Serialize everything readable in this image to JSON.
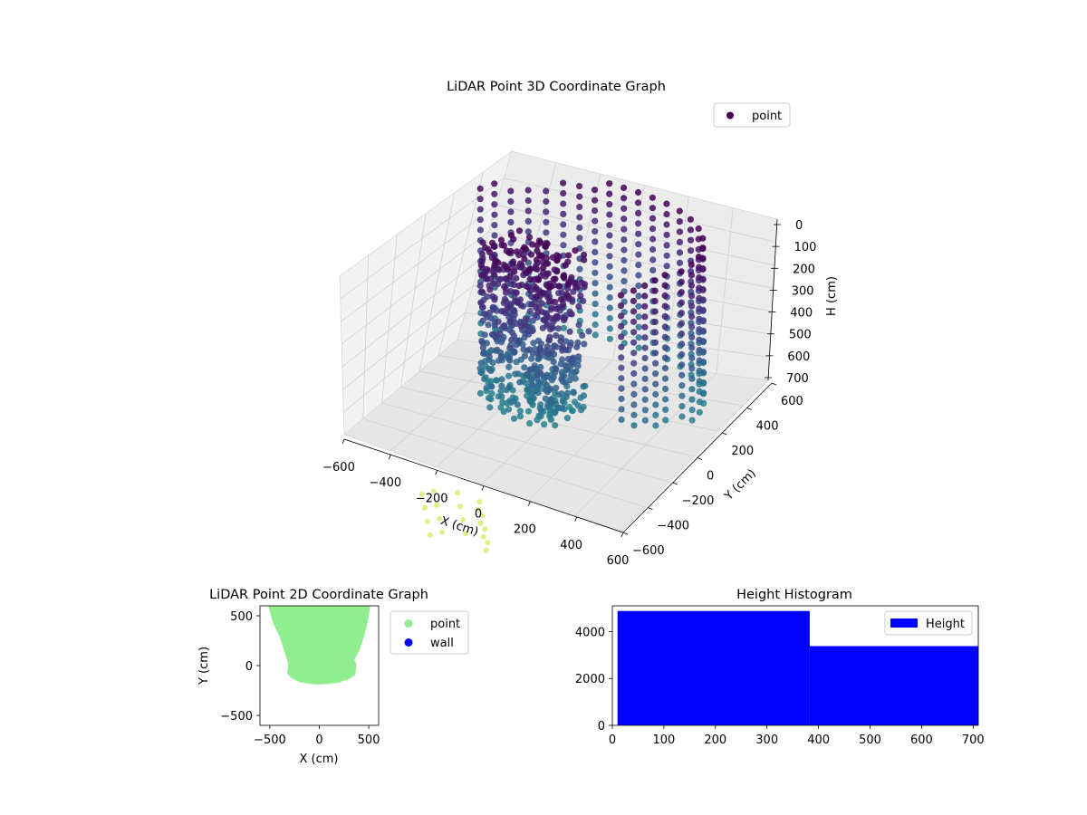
{
  "chart_data": [
    {
      "type": "scatter",
      "projection": "3d",
      "title": "LiDAR Point 3D Coordinate Graph",
      "xlabel": "X (cm)",
      "ylabel": "Y (cm)",
      "zlabel": "H (cm)",
      "xlim": [
        -600,
        600
      ],
      "ylim": [
        -600,
        600
      ],
      "zlim": [
        0,
        700
      ],
      "z_inverted": true,
      "x_ticks": [
        "−600",
        "−400",
        "−200",
        "0",
        "200",
        "400",
        "600"
      ],
      "y_ticks": [
        "−600",
        "−400",
        "−200",
        "0",
        "200",
        "400",
        "600"
      ],
      "z_ticks": [
        "0",
        "100",
        "200",
        "300",
        "400",
        "500",
        "600",
        "700"
      ],
      "grid": true,
      "legend": {
        "placement": "top-right",
        "entries": [
          {
            "name": "point",
            "color": "#440154"
          }
        ]
      },
      "colormap": "viridis",
      "point_cloud": {
        "description_series": [
          {
            "name": "point",
            "shape": "dense ring-shaped wall of points, radius ~400-500 cm, heights 0-700 cm; near-field cluster at X -500..500, Y -200..100"
          }
        ],
        "outliers": [
          {
            "x": -230,
            "y": -520,
            "h": 700
          },
          {
            "x": -200,
            "y": -480,
            "h": 700
          },
          {
            "x": -120,
            "y": -440,
            "h": 700
          },
          {
            "x": -20,
            "y": -450,
            "h": 700
          },
          {
            "x": 0,
            "y": -500,
            "h": 700
          }
        ]
      }
    },
    {
      "type": "scatter",
      "title": "LiDAR Point 2D Coordinate Graph",
      "xlabel": "X (cm)",
      "ylabel": "Y (cm)",
      "xlim": [
        -600,
        600
      ],
      "ylim": [
        -600,
        600
      ],
      "x_ticks": [
        "−500",
        "0",
        "500"
      ],
      "y_ticks": [
        "−500",
        "0",
        "500"
      ],
      "legend": {
        "placement": "outside-right",
        "entries": [
          {
            "name": "point",
            "color": "#90ee90"
          },
          {
            "name": "wall",
            "color": "#0000ff"
          }
        ]
      },
      "series": [
        {
          "name": "point",
          "color": "#90ee90",
          "outline": [
            [
              -510,
              600
            ],
            [
              -490,
              520
            ],
            [
              -460,
              420
            ],
            [
              -400,
              300
            ],
            [
              -360,
              180
            ],
            [
              -330,
              80
            ],
            [
              -310,
              20
            ],
            [
              -320,
              -80
            ],
            [
              -280,
              -120
            ],
            [
              -200,
              -160
            ],
            [
              -100,
              -180
            ],
            [
              0,
              -185
            ],
            [
              100,
              -180
            ],
            [
              200,
              -165
            ],
            [
              300,
              -130
            ],
            [
              360,
              -90
            ],
            [
              370,
              10
            ],
            [
              350,
              60
            ],
            [
              400,
              150
            ],
            [
              450,
              300
            ],
            [
              480,
              420
            ],
            [
              500,
              520
            ],
            [
              510,
              600
            ]
          ]
        },
        {
          "name": "wall",
          "color": "#0000ff",
          "outline": []
        }
      ]
    },
    {
      "type": "bar",
      "subtype": "histogram",
      "title": "Height Histogram",
      "xlim": [
        0,
        710
      ],
      "ylim": [
        0,
        5100
      ],
      "x_ticks": [
        0,
        100,
        200,
        300,
        400,
        500,
        600,
        700
      ],
      "y_ticks": [
        0,
        2000,
        4000
      ],
      "legend": {
        "placement": "top-right",
        "entries": [
          {
            "name": "Height",
            "color": "#0000ff"
          }
        ]
      },
      "series": [
        {
          "name": "Height",
          "color": "#0000ff",
          "bins": [
            {
              "from": 10,
              "to": 383,
              "value": 4880
            },
            {
              "from": 383,
              "to": 710,
              "value": 3380
            }
          ]
        }
      ]
    }
  ]
}
